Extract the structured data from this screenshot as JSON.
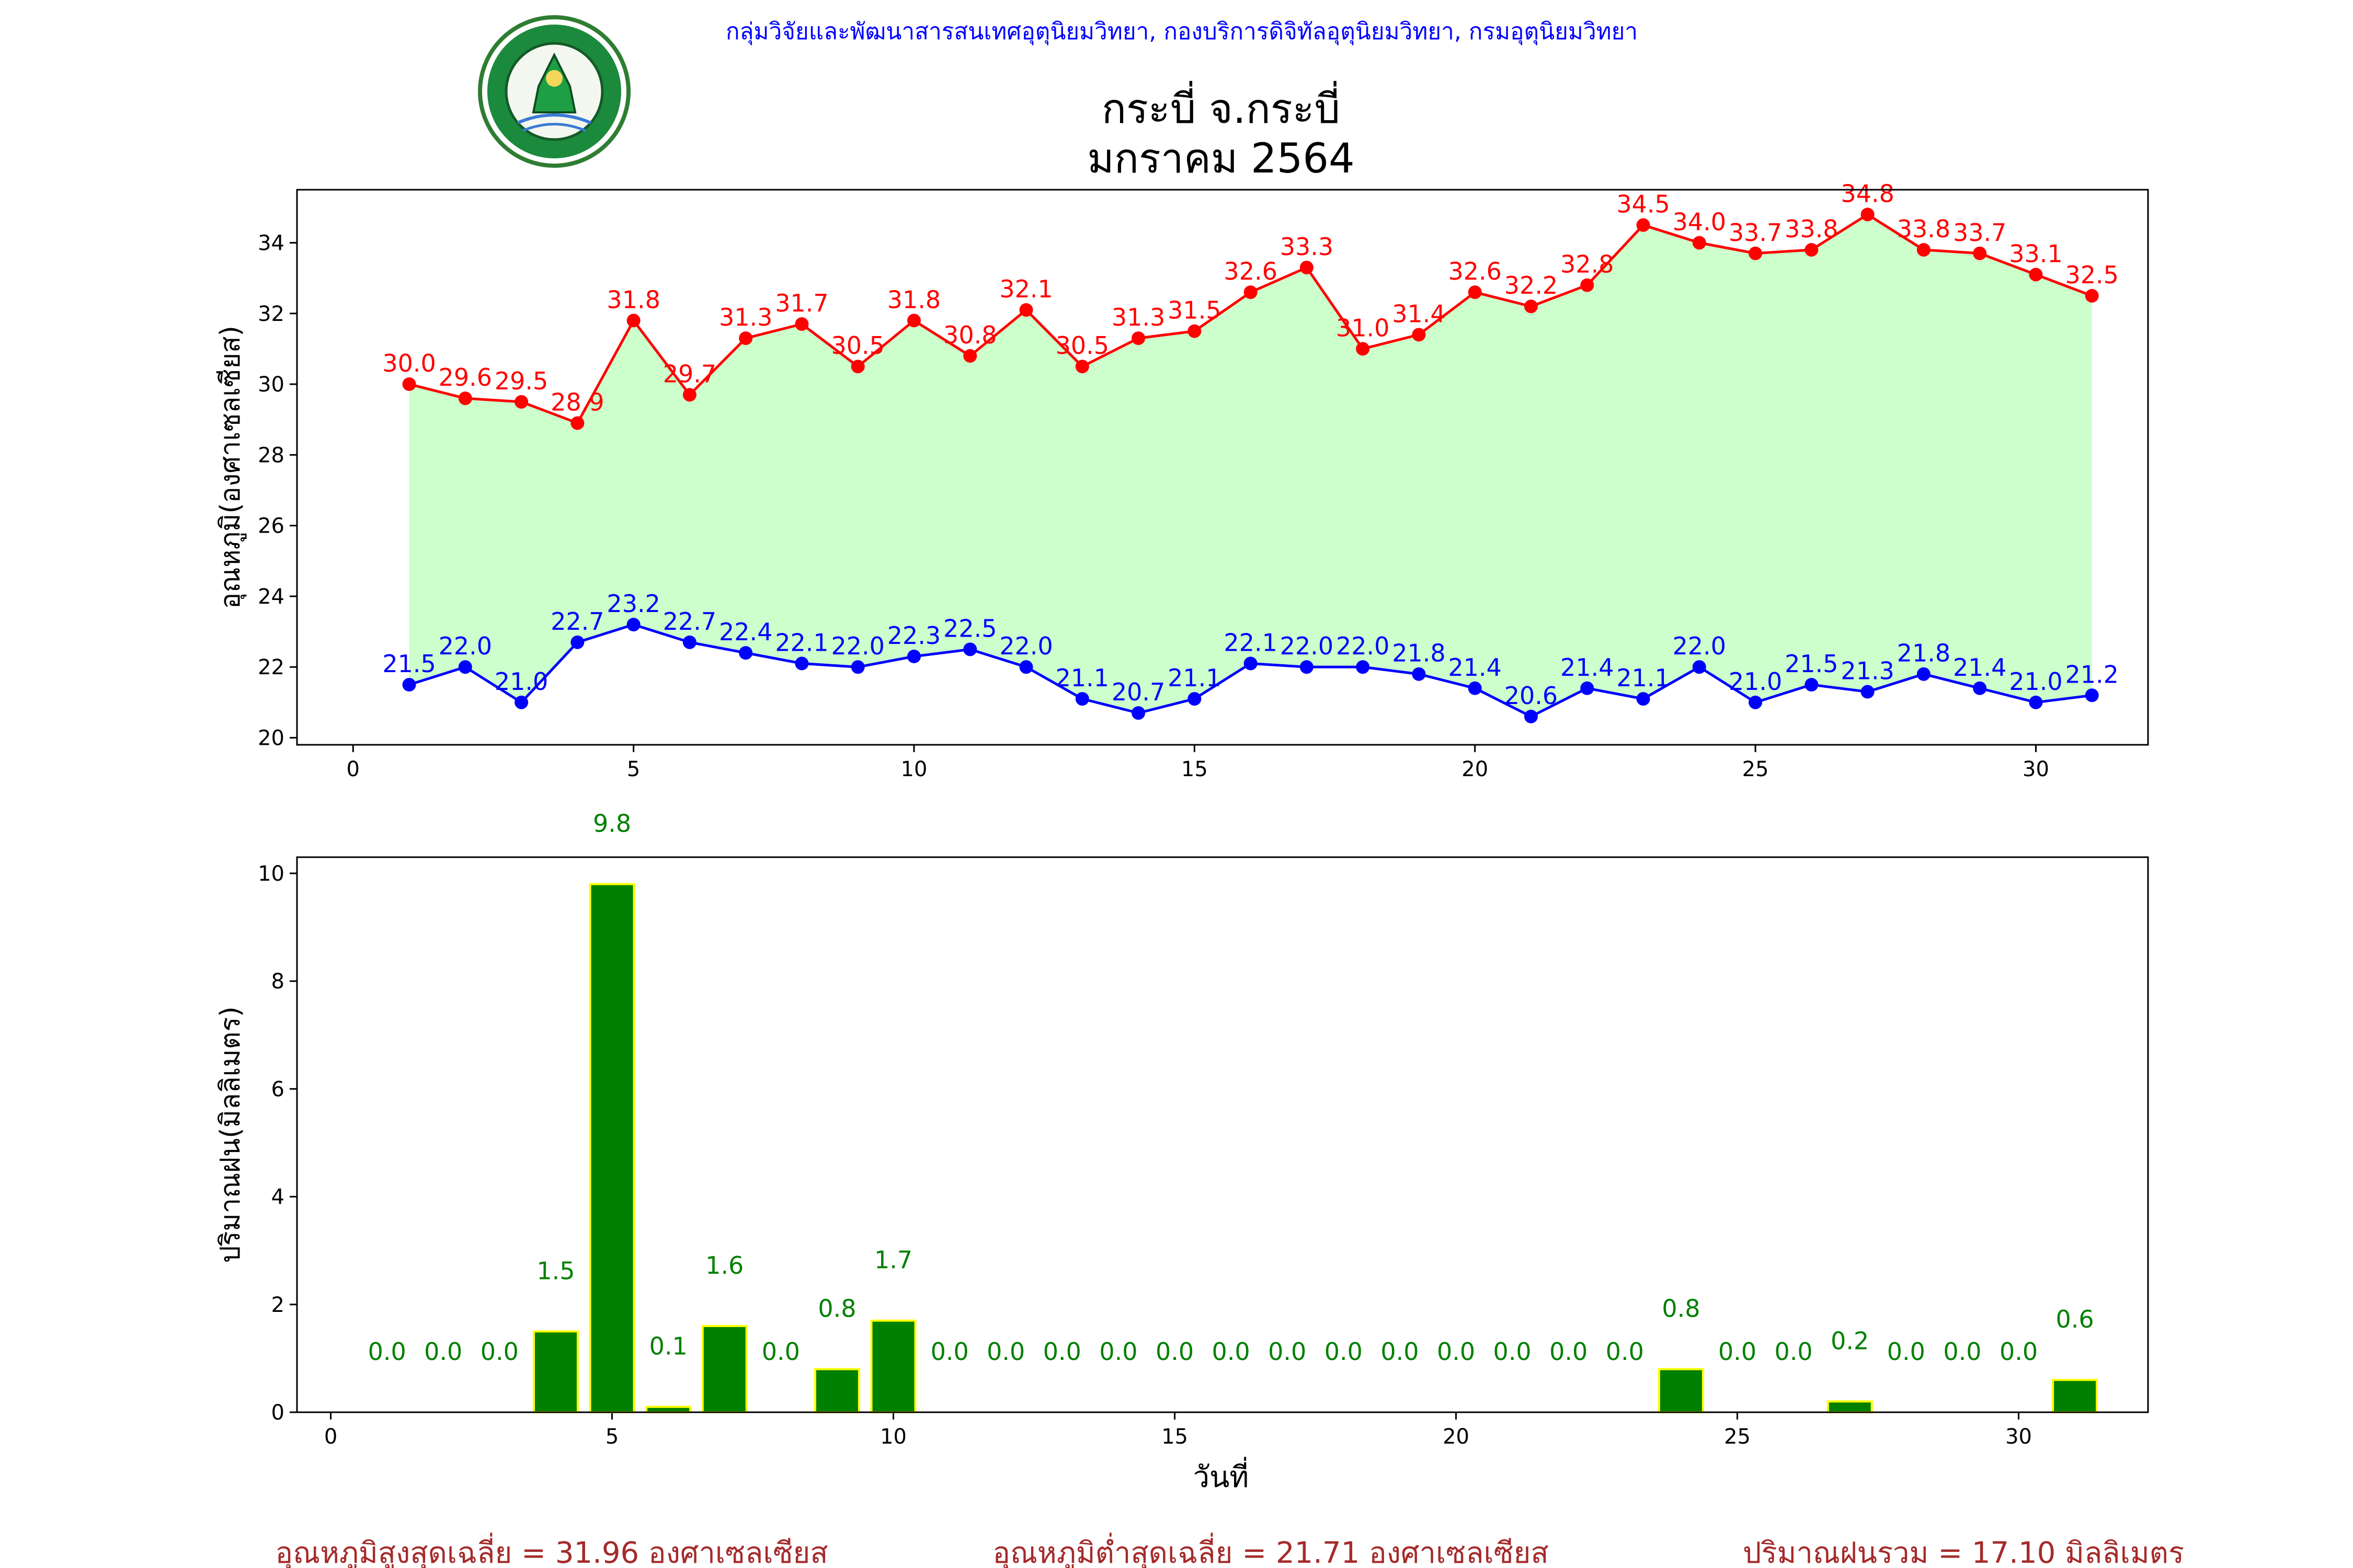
{
  "header": {
    "agency_line": "กลุ่มวิจัยและพัฒนาสารสนเทศอุตุนิยมวิทยา, กองบริการดิจิทัลอุตุนิยมวิทยา, กรมอุตุนิยมวิทยา",
    "title_line1": "กระบี่ จ.กระบี่",
    "title_line2": "มกราคม 2564",
    "logo_text_top": "กรมอุตุนิยมวิทยา",
    "logo_text_bottom": "METEOROLOGICAL DEPARTMENT"
  },
  "colors": {
    "max_temp": "#ff0000",
    "min_temp": "#0000ff",
    "fill": "#ccffcc",
    "rain_bar": "#008000",
    "rain_edge": "#ffff00",
    "rain_label": "#008000",
    "summary": "#a52a2a",
    "agency": "#0000ff"
  },
  "chart_data": [
    {
      "type": "line",
      "ylabel": "อุณหภูมิ(องศาเซลเซียส)",
      "xlabel": "",
      "xlim": [
        -1,
        32
      ],
      "ylim": [
        19.8,
        35.5
      ],
      "xticks": [
        0,
        5,
        10,
        15,
        20,
        25,
        30
      ],
      "yticks": [
        20,
        22,
        24,
        26,
        28,
        30,
        32,
        34
      ],
      "x": [
        1,
        2,
        3,
        4,
        5,
        6,
        7,
        8,
        9,
        10,
        11,
        12,
        13,
        14,
        15,
        16,
        17,
        18,
        19,
        20,
        21,
        22,
        23,
        24,
        25,
        26,
        27,
        28,
        29,
        30,
        31
      ],
      "series": [
        {
          "key": "max",
          "values": [
            30.0,
            29.6,
            29.5,
            28.9,
            31.8,
            29.7,
            31.3,
            31.7,
            30.5,
            31.8,
            30.8,
            32.1,
            30.5,
            31.3,
            31.5,
            32.6,
            33.3,
            31.0,
            31.4,
            32.6,
            32.2,
            32.8,
            34.5,
            34.0,
            33.7,
            33.8,
            34.8,
            33.8,
            33.7,
            33.1,
            32.5
          ],
          "labels": [
            "30.0",
            "29.6",
            "29.5",
            "28.9",
            "31.8",
            "29.7",
            "31.3",
            "31.7",
            "30.5",
            "31.8",
            "30.8",
            "32.1",
            "30.5",
            "31.3",
            "31.5",
            "32.6",
            "33.3",
            "31.0",
            "31.4",
            "32.6",
            "32.2",
            "32.8",
            "34.5",
            "34.0",
            "33.7",
            "33.8",
            "34.8",
            "33.8",
            "33.7",
            "33.1",
            "32.5"
          ]
        },
        {
          "key": "min",
          "values": [
            21.5,
            22.0,
            21.0,
            22.7,
            23.2,
            22.7,
            22.4,
            22.1,
            22.0,
            22.3,
            22.5,
            22.0,
            21.1,
            20.7,
            21.1,
            22.1,
            22.0,
            22.0,
            21.8,
            21.4,
            20.6,
            21.4,
            21.1,
            22.0,
            21.0,
            21.5,
            21.3,
            21.8,
            21.4,
            21.0,
            21.2
          ],
          "labels": [
            "21.5",
            "22.0",
            "21.0",
            "22.7",
            "23.2",
            "22.7",
            "22.4",
            "22.1",
            "22.0",
            "22.3",
            "22.5",
            "22.0",
            "21.1",
            "20.7",
            "21.1",
            "22.1",
            "22.0",
            "22.0",
            "21.8",
            "21.4",
            "20.6",
            "21.4",
            "21.1",
            "22.0",
            "21.0",
            "21.5",
            "21.3",
            "21.8",
            "21.4",
            "21.0",
            "21.2"
          ]
        }
      ]
    },
    {
      "type": "bar",
      "xlabel": "วันที่",
      "ylabel": "ปริมาณฝน(มิลลิเมตร)",
      "xlim": [
        -0.6,
        32.3
      ],
      "ylim": [
        0,
        10.3
      ],
      "xticks": [
        0,
        5,
        10,
        15,
        20,
        25,
        30
      ],
      "yticks": [
        0,
        2,
        4,
        6,
        8,
        10
      ],
      "x": [
        1,
        2,
        3,
        4,
        5,
        6,
        7,
        8,
        9,
        10,
        11,
        12,
        13,
        14,
        15,
        16,
        17,
        18,
        19,
        20,
        21,
        22,
        23,
        24,
        25,
        26,
        27,
        28,
        29,
        30,
        31
      ],
      "values": [
        0.0,
        0.0,
        0.0,
        1.5,
        9.8,
        0.1,
        1.6,
        0.0,
        0.8,
        1.7,
        0.0,
        0.0,
        0.0,
        0.0,
        0.0,
        0.0,
        0.0,
        0.0,
        0.0,
        0.0,
        0.0,
        0.0,
        0.0,
        0.8,
        0.0,
        0.0,
        0.2,
        0.0,
        0.0,
        0.0,
        0.6
      ],
      "labels": [
        "0.0",
        "0.0",
        "0.0",
        "1.5",
        "9.8",
        "0.1",
        "1.6",
        "0.0",
        "0.8",
        "1.7",
        "0.0",
        "0.0",
        "0.0",
        "0.0",
        "0.0",
        "0.0",
        "0.0",
        "0.0",
        "0.0",
        "0.0",
        "0.0",
        "0.0",
        "0.0",
        "0.8",
        "0.0",
        "0.0",
        "0.2",
        "0.0",
        "0.0",
        "0.0",
        "0.6"
      ]
    }
  ],
  "summary": {
    "avg_max": "อุณหภูมิสูงสุดเฉลี่ย = 31.96 องศาเซลเซียส",
    "avg_min": "อุณหภูมิต่ำสุดเฉลี่ย = 21.71 องศาเซลเซียส",
    "total_rain": "ปริมาณฝนรวม = 17.10 มิลลิเมตร"
  }
}
